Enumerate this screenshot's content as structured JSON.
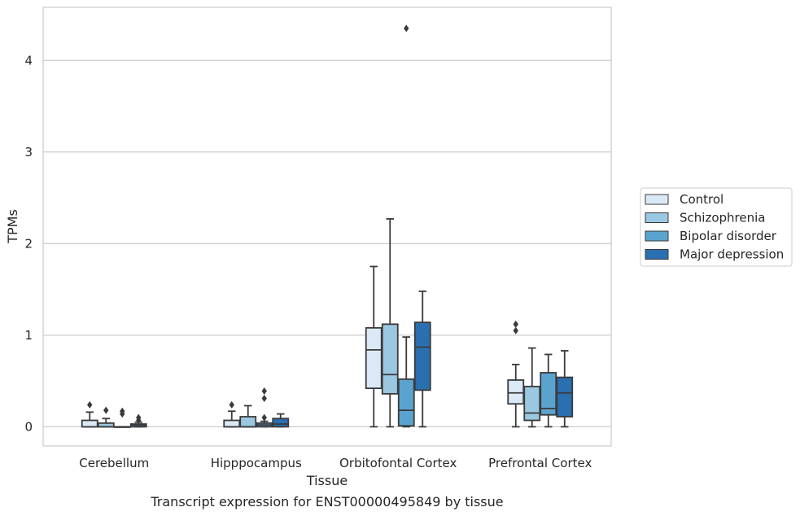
{
  "chart_data": {
    "type": "box",
    "title": "",
    "caption": "Transcript expression for ENST00000495849 by tissue",
    "xlabel": "Tissue",
    "ylabel": "TPMs",
    "ylim": [
      -0.21,
      4.58
    ],
    "yticks": [
      0,
      1,
      2,
      3,
      4
    ],
    "grid": "horizontal",
    "legend_position": "right",
    "categories": [
      "Cerebellum",
      "Hipppocampus",
      "Orbitofontal Cortex",
      "Prefrontal Cortex"
    ],
    "series": [
      {
        "name": "Control",
        "color": "#dbe9f6",
        "boxes": [
          {
            "whislo": 0.0,
            "q1": 0.0,
            "med": 0.0,
            "q3": 0.07,
            "whishi": 0.16,
            "fliers": [
              0.24
            ]
          },
          {
            "whislo": 0.0,
            "q1": 0.0,
            "med": 0.0,
            "q3": 0.07,
            "whishi": 0.17,
            "fliers": [
              0.24
            ]
          },
          {
            "whislo": 0.0,
            "q1": 0.42,
            "med": 0.84,
            "q3": 1.08,
            "whishi": 1.75,
            "fliers": []
          },
          {
            "whislo": 0.0,
            "q1": 0.25,
            "med": 0.37,
            "q3": 0.51,
            "whishi": 0.68,
            "fliers": [
              1.05,
              1.12
            ]
          }
        ]
      },
      {
        "name": "Schizophrenia",
        "color": "#9ac8e0",
        "boxes": [
          {
            "whislo": 0.0,
            "q1": 0.0,
            "med": 0.0,
            "q3": 0.04,
            "whishi": 0.09,
            "fliers": [
              0.18
            ]
          },
          {
            "whislo": 0.0,
            "q1": 0.0,
            "med": 0.0,
            "q3": 0.11,
            "whishi": 0.23,
            "fliers": []
          },
          {
            "whislo": 0.0,
            "q1": 0.36,
            "med": 0.57,
            "q3": 1.12,
            "whishi": 2.27,
            "fliers": []
          },
          {
            "whislo": 0.0,
            "q1": 0.07,
            "med": 0.15,
            "q3": 0.44,
            "whishi": 0.86,
            "fliers": []
          }
        ]
      },
      {
        "name": "Bipolar disorder",
        "color": "#5ba3cf",
        "boxes": [
          {
            "whislo": 0.0,
            "q1": 0.0,
            "med": 0.0,
            "q3": 0.0,
            "whishi": 0.0,
            "fliers": [
              0.14,
              0.17
            ]
          },
          {
            "whislo": 0.0,
            "q1": 0.0,
            "med": 0.02,
            "q3": 0.04,
            "whishi": 0.06,
            "fliers": [
              0.1,
              0.31,
              0.39
            ]
          },
          {
            "whislo": 0.0,
            "q1": 0.01,
            "med": 0.18,
            "q3": 0.52,
            "whishi": 0.98,
            "fliers": [
              4.35
            ]
          },
          {
            "whislo": 0.0,
            "q1": 0.13,
            "med": 0.2,
            "q3": 0.59,
            "whishi": 0.79,
            "fliers": []
          }
        ]
      },
      {
        "name": "Major depression",
        "color": "#2a6fb0",
        "boxes": [
          {
            "whislo": 0.0,
            "q1": 0.0,
            "med": 0.02,
            "q3": 0.03,
            "whishi": 0.05,
            "fliers": [
              0.07,
              0.1
            ]
          },
          {
            "whislo": 0.0,
            "q1": 0.0,
            "med": 0.03,
            "q3": 0.09,
            "whishi": 0.14,
            "fliers": []
          },
          {
            "whislo": 0.0,
            "q1": 0.4,
            "med": 0.87,
            "q3": 1.14,
            "whishi": 1.48,
            "fliers": []
          },
          {
            "whislo": 0.0,
            "q1": 0.11,
            "med": 0.37,
            "q3": 0.54,
            "whishi": 0.83,
            "fliers": []
          }
        ]
      }
    ]
  }
}
